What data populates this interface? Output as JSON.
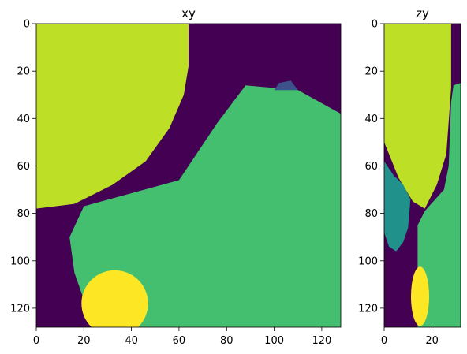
{
  "colors": {
    "background": "#440154",
    "green": "#44bf70",
    "lime": "#bddf26",
    "yellow": "#fde725",
    "teal": "#21918c",
    "blue": "#3b528b"
  },
  "chart_data": [
    {
      "type": "heatmap",
      "title": "xy",
      "xlim": [
        0,
        128
      ],
      "ylim": [
        128,
        0
      ],
      "xticks": [
        "0",
        "20",
        "40",
        "60",
        "80",
        "100",
        "120"
      ],
      "yticks": [
        "0",
        "20",
        "40",
        "60",
        "80",
        "100",
        "120"
      ],
      "regions": [
        {
          "label": "large green region",
          "color": "green",
          "outline": [
            [
              24,
              128
            ],
            [
              16,
              105
            ],
            [
              14,
              90
            ],
            [
              20,
              77
            ],
            [
              60,
              66
            ],
            [
              76,
              42
            ],
            [
              88,
              26
            ],
            [
              110,
              28
            ],
            [
              128,
              38
            ],
            [
              128,
              128
            ]
          ]
        },
        {
          "label": "lime ellipse",
          "color": "lime",
          "outline": [
            [
              0,
              0
            ],
            [
              64,
              0
            ],
            [
              64,
              18
            ],
            [
              62,
              30
            ],
            [
              56,
              44
            ],
            [
              46,
              58
            ],
            [
              32,
              68
            ],
            [
              16,
              76
            ],
            [
              0,
              78
            ]
          ]
        },
        {
          "label": "yellow circle",
          "color": "yellow",
          "center": [
            33,
            118
          ],
          "radius": [
            14,
            14
          ]
        },
        {
          "label": "small blue patch",
          "color": "blue",
          "outline": [
            [
              100,
              28
            ],
            [
              102,
              25
            ],
            [
              107,
              24
            ],
            [
              110,
              28
            ]
          ]
        }
      ]
    },
    {
      "type": "heatmap",
      "title": "zy",
      "xlim": [
        0,
        32
      ],
      "ylim": [
        128,
        0
      ],
      "xticks": [
        "0",
        "20"
      ],
      "yticks": [
        "0",
        "20",
        "40",
        "60",
        "80",
        "100",
        "120"
      ],
      "regions": [
        {
          "label": "green column",
          "color": "green",
          "outline": [
            [
              32,
              25
            ],
            [
              29,
              26
            ],
            [
              28,
              33
            ],
            [
              27,
              60
            ],
            [
              25,
              70
            ],
            [
              17,
              79
            ],
            [
              14,
              85
            ],
            [
              14,
              128
            ],
            [
              32,
              128
            ]
          ]
        },
        {
          "label": "lime ellipse",
          "color": "lime",
          "outline": [
            [
              0,
              0
            ],
            [
              28,
              0
            ],
            [
              28,
              27
            ],
            [
              26,
              55
            ],
            [
              22,
              68
            ],
            [
              17,
              78
            ],
            [
              12,
              75
            ],
            [
              6,
              65
            ],
            [
              2,
              55
            ],
            [
              0,
              50
            ]
          ]
        },
        {
          "label": "teal region",
          "color": "teal",
          "outline": [
            [
              0,
              58
            ],
            [
              4,
              64
            ],
            [
              8,
              68
            ],
            [
              11,
              74
            ],
            [
              10,
              86
            ],
            [
              8,
              92
            ],
            [
              5,
              96
            ],
            [
              2,
              94
            ],
            [
              0,
              88
            ]
          ]
        },
        {
          "label": "yellow ellipse",
          "color": "yellow",
          "center": [
            15,
            115
          ],
          "radius": [
            3.8,
            12.5
          ]
        }
      ]
    }
  ]
}
